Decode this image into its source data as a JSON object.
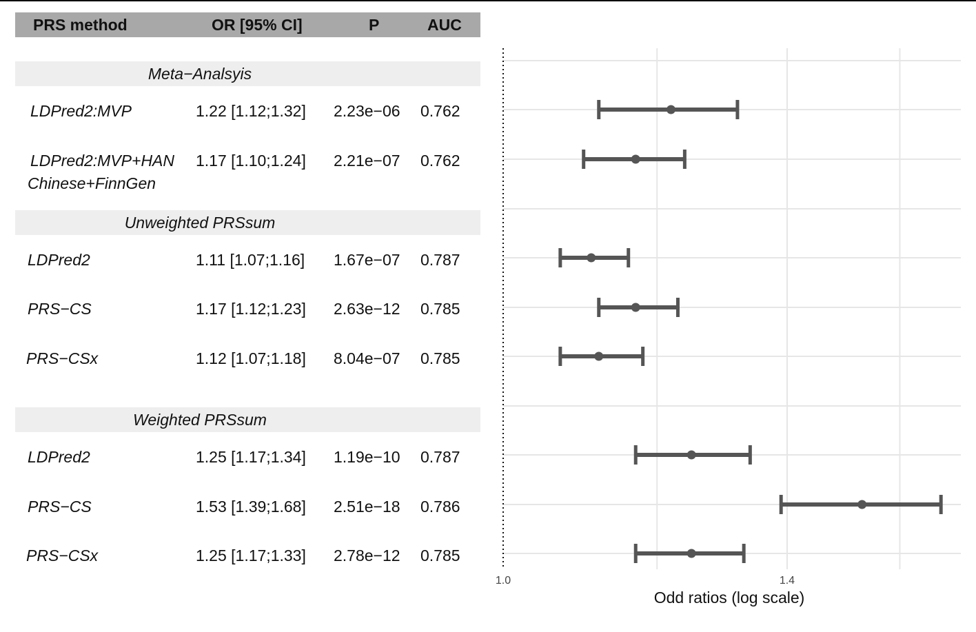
{
  "table": {
    "headers": {
      "method": "PRS method",
      "or": "OR [95% CI]",
      "p": "P",
      "auc": "AUC"
    },
    "sections": [
      {
        "title": "Meta−Analsyis",
        "rows": [
          {
            "name": "LDPred2:MVP",
            "name2": "",
            "or": "1.22 [1.12;1.32]",
            "p": "2.23e−06",
            "auc": "0.762"
          },
          {
            "name": "LDPred2:MVP+HAN",
            "name2": "Chinese+FinnGen",
            "or": "1.17 [1.10;1.24]",
            "p": "2.21e−07",
            "auc": "0.762"
          }
        ]
      },
      {
        "title": "Unweighted PRSsum",
        "rows": [
          {
            "name": "LDPred2",
            "name2": "",
            "or": "1.11 [1.07;1.16]",
            "p": "1.67e−07",
            "auc": "0.787"
          },
          {
            "name": "PRS−CS",
            "name2": "",
            "or": "1.17 [1.12;1.23]",
            "p": "2.63e−12",
            "auc": "0.785"
          },
          {
            "name": "PRS−CSx",
            "name2": "",
            "or": "1.12 [1.07;1.18]",
            "p": "8.04e−07",
            "auc": "0.785"
          }
        ]
      },
      {
        "title": "Weighted PRSsum",
        "rows": [
          {
            "name": "LDPred2",
            "name2": "",
            "or": "1.25 [1.17;1.34]",
            "p": "1.19e−10",
            "auc": "0.787"
          },
          {
            "name": "PRS−CS",
            "name2": "",
            "or": "1.53 [1.39;1.68]",
            "p": "2.51e−18",
            "auc": "0.786"
          },
          {
            "name": "PRS−CSx",
            "name2": "",
            "or": "1.25 [1.17;1.33]",
            "p": "2.78e−12",
            "auc": "0.785"
          }
        ]
      }
    ]
  },
  "colors": {
    "header_bg": "#a8a8a8",
    "band_bg": "#eeeeee",
    "marker": "#555555",
    "grid": "#e6e6e6"
  },
  "chart_data": {
    "type": "forest",
    "xlabel": "Odd ratios (log scale)",
    "x_scale": "log",
    "xlim": [
      1.0,
      1.72
    ],
    "x_ticks": [
      1.0,
      1.4
    ],
    "x_tick_labels": [
      "1.0",
      "1.4"
    ],
    "reference_line": 1.0,
    "grid": true,
    "points": [
      {
        "label": "LDPred2:MVP",
        "or": 1.22,
        "lower": 1.12,
        "upper": 1.32
      },
      {
        "label": "LDPred2:MVP+HAN Chinese+FinnGen",
        "or": 1.17,
        "lower": 1.1,
        "upper": 1.24
      },
      {
        "label": "LDPred2",
        "or": 1.11,
        "lower": 1.07,
        "upper": 1.16
      },
      {
        "label": "PRS−CS",
        "or": 1.17,
        "lower": 1.12,
        "upper": 1.23
      },
      {
        "label": "PRS−CSx",
        "or": 1.12,
        "lower": 1.07,
        "upper": 1.18
      },
      {
        "label": "LDPred2",
        "or": 1.25,
        "lower": 1.17,
        "upper": 1.34
      },
      {
        "label": "PRS−CS",
        "or": 1.53,
        "lower": 1.39,
        "upper": 1.68
      },
      {
        "label": "PRS−CSx",
        "or": 1.25,
        "lower": 1.17,
        "upper": 1.33
      }
    ]
  }
}
